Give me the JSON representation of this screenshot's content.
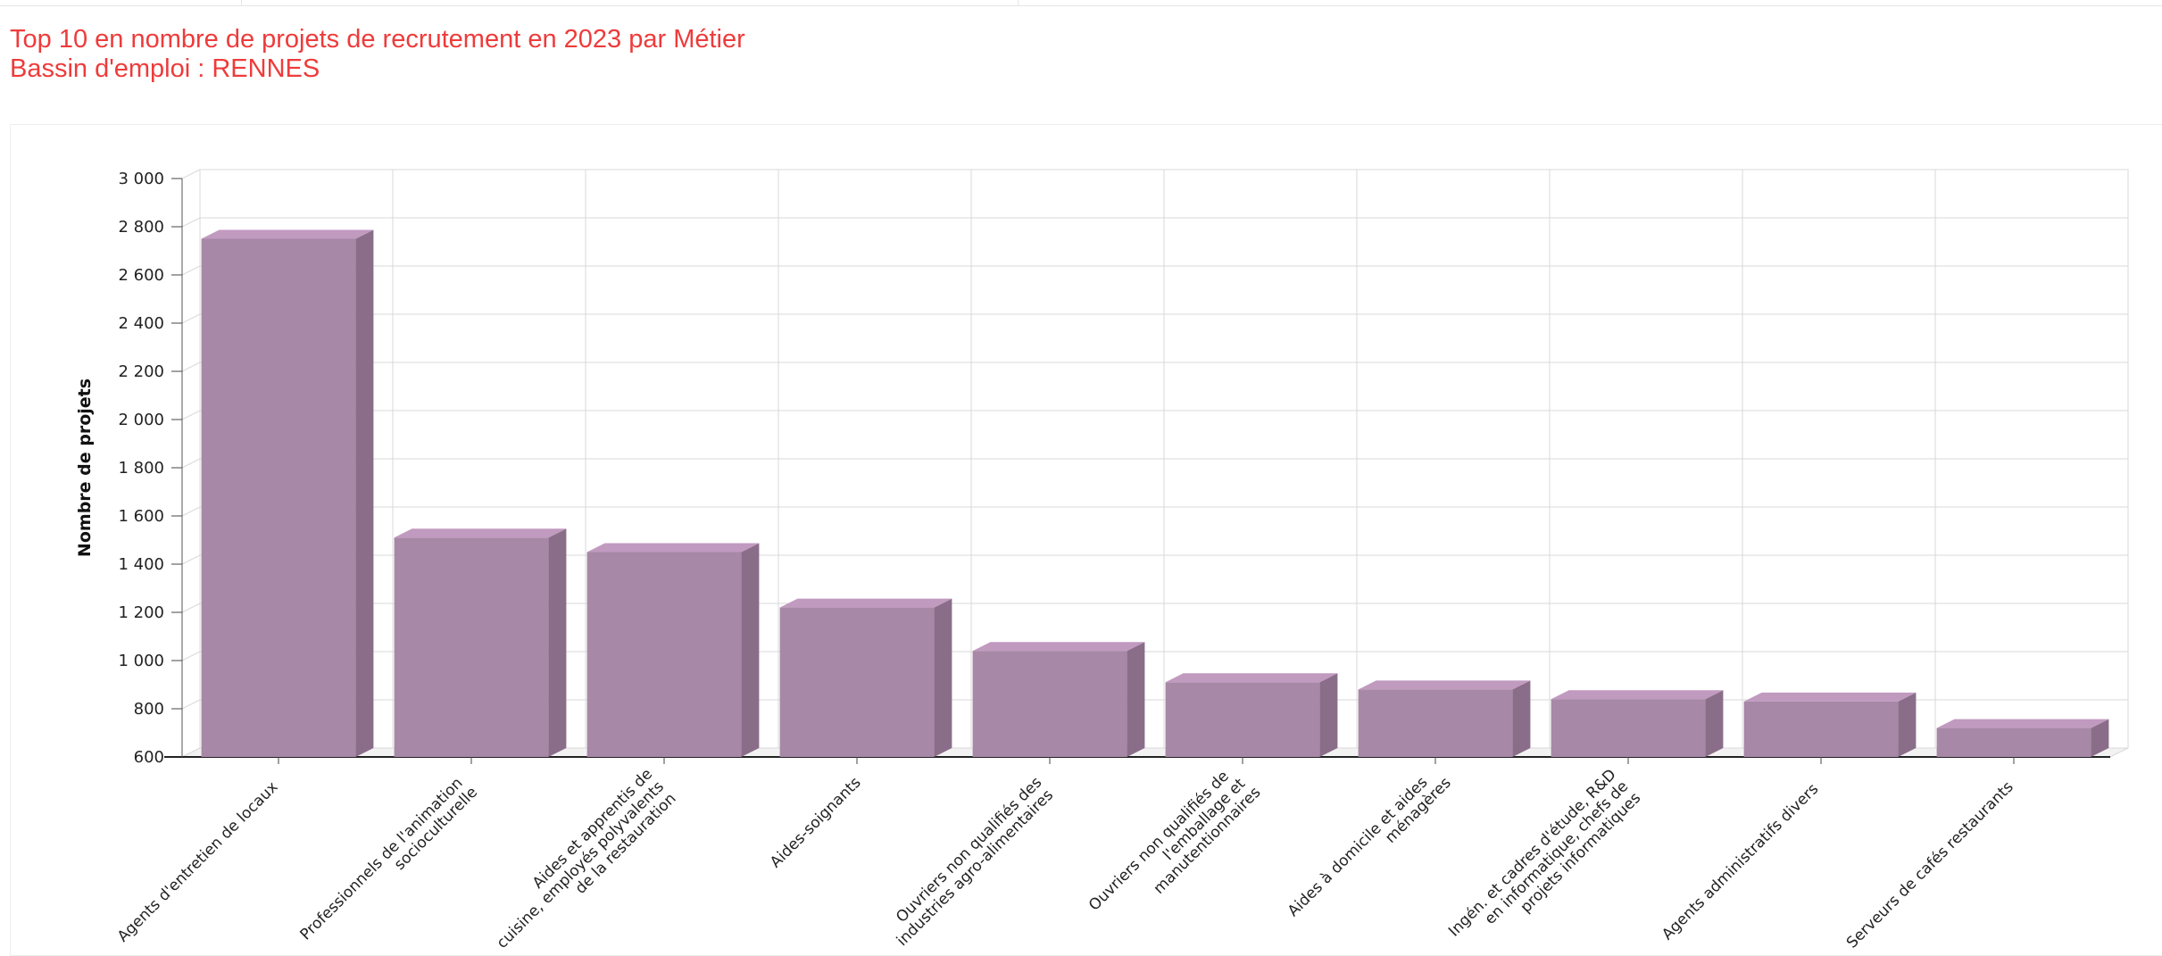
{
  "header": {
    "title_line1": "Top 10 en nombre de projets de recrutement en 2023 par Métier",
    "title_line2": "Bassin d'emploi : RENNES"
  },
  "colors": {
    "title": "#ee3b3b",
    "bar_front": "#a788a6",
    "bar_top": "#c19ac0",
    "bar_side": "#8a6e89",
    "grid": "#d9d9d9"
  },
  "chart_data": {
    "type": "bar",
    "title": "Top 10 en nombre de projets de recrutement en 2023 par Métier",
    "subtitle": "Bassin d'emploi : RENNES",
    "xlabel": "",
    "ylabel": "Nombre de projets",
    "ylim": [
      600,
      3000
    ],
    "yticks": [
      "600",
      "800",
      "1 000",
      "1 200",
      "1 400",
      "1 600",
      "1 800",
      "2 000",
      "2 200",
      "2 400",
      "2 600",
      "2 800",
      "3 000"
    ],
    "ytick_values": [
      600,
      800,
      1000,
      1200,
      1400,
      1600,
      1800,
      2000,
      2200,
      2400,
      2600,
      2800,
      3000
    ],
    "grid": true,
    "legend": "none",
    "categories": [
      [
        "Agents d'entretien de locaux"
      ],
      [
        "Professionnels de l'animation",
        "socioculturelle"
      ],
      [
        "Aides et apprentis de",
        "cuisine, employés polyvalents",
        "de la restauration"
      ],
      [
        "Aides-soignants"
      ],
      [
        "Ouvriers non qualifiés des",
        "industries agro-alimentaires"
      ],
      [
        "Ouvriers non qualifiés de",
        "l'emballage et",
        "manutentionnaires"
      ],
      [
        "Aides à domicile et aides",
        "ménagères"
      ],
      [
        "Ingén. et cadres d'étude, R&D",
        "en informatique, chefs de",
        "projets informatiques"
      ],
      [
        "Agents administratifs divers"
      ],
      [
        "Serveurs de cafés restaurants"
      ]
    ],
    "values": [
      2750,
      1510,
      1450,
      1220,
      1040,
      910,
      880,
      840,
      830,
      720
    ]
  }
}
